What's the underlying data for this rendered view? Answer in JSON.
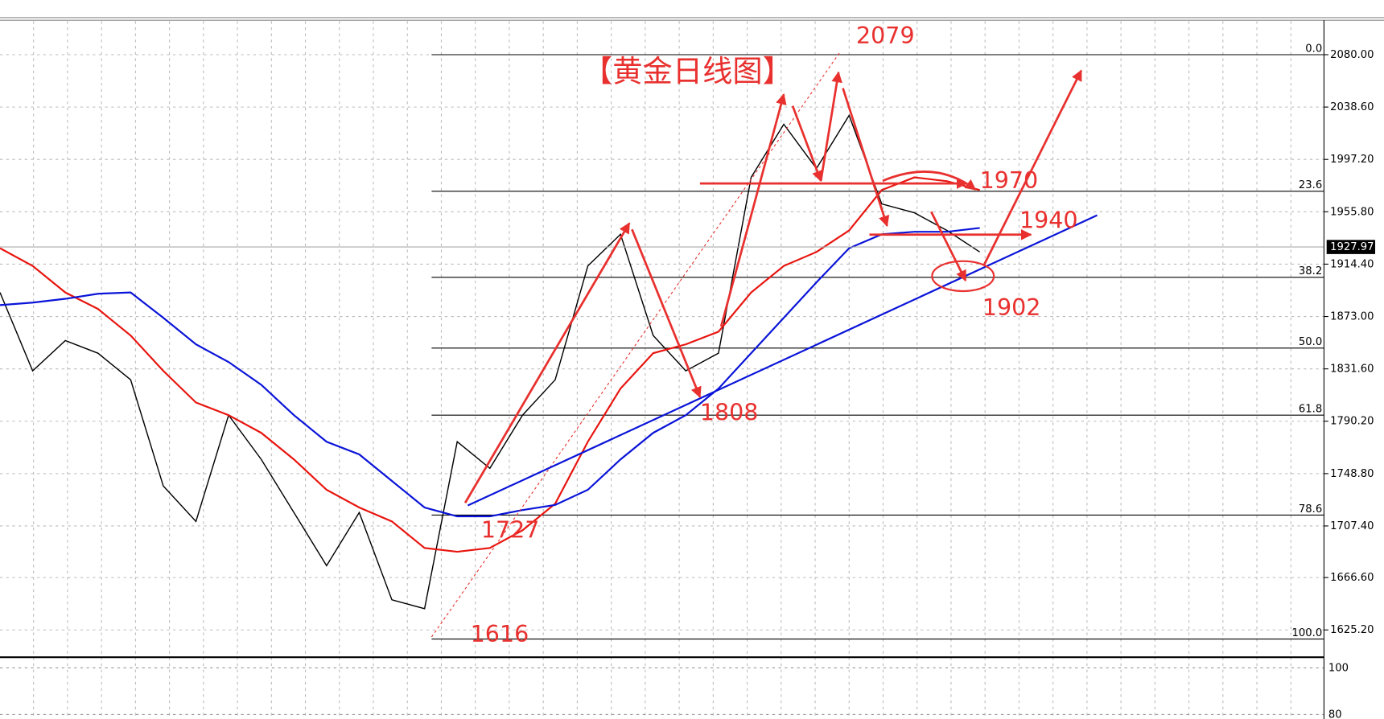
{
  "chart_data": [
    {
      "type": "line",
      "title": "【黄金日线图】",
      "categories": [
        null,
        null,
        null,
        null,
        null,
        null,
        null,
        null,
        null,
        null,
        null,
        null,
        null,
        null,
        null,
        null,
        null,
        null,
        null,
        null,
        null,
        null,
        null,
        null,
        null,
        null,
        null,
        null,
        null,
        null,
        null
      ],
      "series": [
        {
          "color": "#000000",
          "values": [
            1892,
            1830,
            1854,
            1844,
            1823,
            1739,
            1711,
            1795,
            1760,
            1718,
            1676,
            1718,
            1649,
            1642,
            1774,
            1753,
            1795,
            1823,
            1913,
            1938,
            1858,
            1830,
            1844,
            1983,
            2025,
            1990,
            2032,
            1962,
            1955,
            1941,
            1924
          ]
        },
        {
          "color": "#e8150f",
          "values": [
            1927,
            1913,
            1892,
            1879,
            1858,
            1830,
            1805,
            1795,
            1781,
            1760,
            1736,
            1722,
            1711,
            1690,
            1687,
            1690,
            1704,
            1725,
            1774,
            1816,
            1844,
            1851,
            1861,
            1892,
            1913,
            1924,
            1941,
            1973,
            1983,
            1980,
            1973
          ]
        },
        {
          "color": "#0a14d8",
          "values": [
            1882,
            1884,
            1887,
            1891,
            1892,
            1872,
            1851,
            1837,
            1819,
            1795,
            1774,
            1764,
            1743,
            1722,
            1715,
            1715,
            1720,
            1724,
            1736,
            1760,
            1781,
            1795,
            1816,
            1844,
            1872,
            1900,
            1927,
            1938,
            1940,
            1940,
            1943
          ]
        }
      ],
      "ylim": [
        1603.6,
        2107.2
      ],
      "yticks": [
        {
          "value": 2080,
          "label": "2080.00"
        },
        {
          "value": 2038.6,
          "label": "2038.60"
        },
        {
          "value": 1997.2,
          "label": "1997.20"
        },
        {
          "value": 1955.8,
          "label": "1955.80"
        },
        {
          "value": 1914.4,
          "label": "1914.40"
        },
        {
          "value": 1873,
          "label": "1873.00"
        },
        {
          "value": 1831.6,
          "label": "1831.60"
        },
        {
          "value": 1790.2,
          "label": "1790.20"
        },
        {
          "value": 1748.8,
          "label": "1748.80"
        },
        {
          "value": 1707.4,
          "label": "1707.40"
        },
        {
          "value": 1666.6,
          "label": "1666.60"
        },
        {
          "value": 1625.2,
          "label": "1625.20"
        }
      ],
      "grid": true,
      "current_price": 1927.97,
      "fib_levels": [
        {
          "label": "0.0",
          "value": 2080
        },
        {
          "label": "23.6",
          "value": 1972
        },
        {
          "label": "38.2",
          "value": 1904
        },
        {
          "label": "50.0",
          "value": 1848
        },
        {
          "label": "61.8",
          "value": 1795
        },
        {
          "label": "78.6",
          "value": 1716
        },
        {
          "label": "100.0",
          "value": 1618
        }
      ],
      "annotations": [
        2079,
        1970,
        1940,
        1902,
        1808,
        1727,
        1616
      ]
    },
    {
      "type": "indicator",
      "ylim": [
        78.1,
        103.8
      ],
      "yticks": [
        100,
        80
      ]
    }
  ]
}
